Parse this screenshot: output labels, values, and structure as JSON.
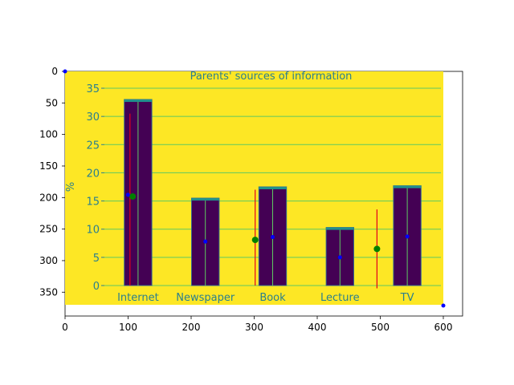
{
  "outer_axes": {
    "x_ticks": [
      "0",
      "100",
      "200",
      "300",
      "400",
      "500",
      "600"
    ],
    "y_ticks": [
      "0",
      "50",
      "100",
      "150",
      "200",
      "250",
      "300",
      "350"
    ]
  },
  "chart_data": {
    "type": "bar",
    "title": "Parents' sources of information",
    "ylabel": "%",
    "xlabel": "",
    "ylim": [
      0,
      35
    ],
    "y_ticks": [
      "0",
      "5",
      "10",
      "15",
      "20",
      "25",
      "30",
      "35"
    ],
    "categories": [
      "Internet",
      "Newspaper",
      "Book",
      "Lecture",
      "TV"
    ],
    "values": [
      33,
      15.5,
      17.5,
      10.3,
      17.7
    ],
    "grid": "horizontal",
    "colors": {
      "background": "#fde725",
      "bar": "#440154",
      "bar_edge": "#31688e",
      "bar_top": "#21918c",
      "grid": "#5ec962",
      "text": "#2a7f8e",
      "red_line": "#e3001b",
      "green_marker": "#008000",
      "blue_marker": "#0000ff"
    }
  }
}
